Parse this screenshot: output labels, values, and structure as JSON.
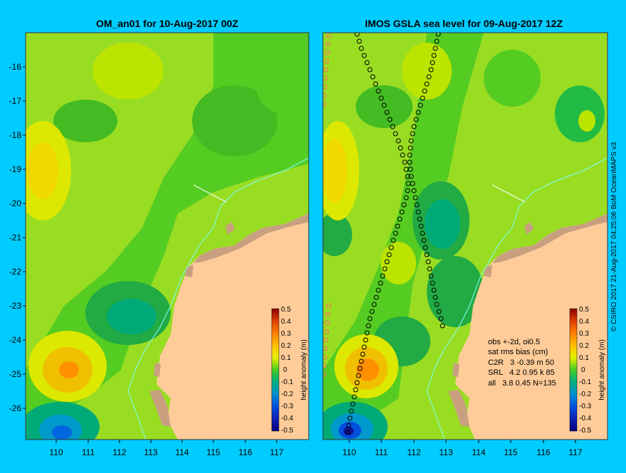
{
  "left_panel": {
    "title": "OM_an01 for 10-Aug-2017 00Z"
  },
  "right_panel": {
    "title": "IMOS GSLA sea level  for 09-Aug-2017 12Z",
    "stats": [
      "obs +-2d, oi0.5",
      "sat rms bias (cm)",
      "C2R   3 -0.39 m 50",
      "SRL   4.2 0.95 k 85",
      "all   3.8 0.45 N=135"
    ]
  },
  "y_axis_ticks": [
    "-16",
    "-17",
    "-18",
    "-19",
    "-20",
    "-21",
    "-22",
    "-23",
    "-24",
    "-25",
    "-26"
  ],
  "x_axis_ticks": [
    "110",
    "111",
    "112",
    "113",
    "114",
    "115",
    "116",
    "117"
  ],
  "colorbar": {
    "label": "height anomaly (m)",
    "ticks": [
      "0.5",
      "0.4",
      "0.3",
      "0.2",
      "0.1",
      "0",
      "-0.1",
      "-0.2",
      "-0.3",
      "-0.4",
      "-0.5"
    ]
  },
  "credit": "© CSIRO 2017   21-Aug-2017 04:25:06 BoM OceanMAPS v3",
  "colors": {
    "background": "#00ccff",
    "land": "#ffcc99",
    "land_relief": "#c8a080",
    "coast_line": "#80ffff"
  }
}
